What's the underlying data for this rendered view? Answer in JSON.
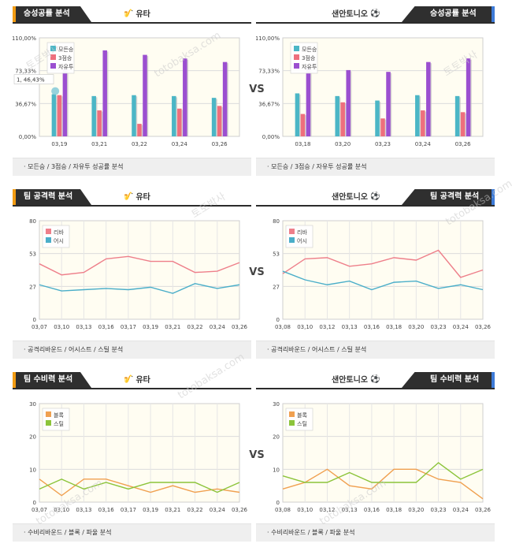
{
  "vs_label": "VS",
  "panels": [
    {
      "side": "left",
      "title": "승성공률 분석",
      "team": "유타",
      "team_icon": "jazz-logo-icon",
      "footer": "모든승 / 3점승 / 자유투 성공률 분석",
      "chart": {
        "type": "bar",
        "categories": [
          "03,19",
          "03,21",
          "03,22",
          "03,24",
          "03,26"
        ],
        "yticks": [
          "0,00%",
          "36,67%",
          "73,33%",
          "110,00%"
        ],
        "ylim": [
          0,
          110
        ],
        "series": [
          {
            "name": "모든승",
            "color": "#4bb6c6",
            "values": [
              47,
              45,
              46,
              45,
              43
            ]
          },
          {
            "name": "3점승",
            "color": "#ee6f7d",
            "values": [
              46,
              29,
              14,
              31,
              34
            ]
          },
          {
            "name": "자유투",
            "color": "#9b4fd0",
            "values": [
              75,
              96,
              91,
              87,
              83
            ]
          }
        ],
        "tooltip": "1, 46,43%"
      }
    },
    {
      "side": "right",
      "title": "승성공률 분석",
      "team": "샌안토니오",
      "team_icon": "spurs-logo-icon",
      "footer": "모든승 / 3점승 / 자유투 성공률 분석",
      "chart": {
        "type": "bar",
        "categories": [
          "03,18",
          "03,20",
          "03,23",
          "03,24",
          "03,26"
        ],
        "yticks": [
          "0,00%",
          "36,67%",
          "73,33%",
          "110,00%"
        ],
        "ylim": [
          0,
          110
        ],
        "series": [
          {
            "name": "모든승",
            "color": "#4bb6c6",
            "values": [
              48,
              45,
              40,
              46,
              45
            ]
          },
          {
            "name": "3점승",
            "color": "#ee6f7d",
            "values": [
              25,
              38,
              20,
              29,
              27
            ]
          },
          {
            "name": "자유투",
            "color": "#9b4fd0",
            "values": [
              77,
              74,
              72,
              83,
              87
            ]
          }
        ]
      }
    },
    {
      "side": "left",
      "title": "팀 공격력 분석",
      "team": "유타",
      "team_icon": "jazz-logo-icon",
      "footer": "공격리바운드 / 어시스트 / 스틸 분석",
      "chart": {
        "type": "line",
        "categories": [
          "03,07",
          "03,10",
          "03,13",
          "03,16",
          "03,17",
          "03,19",
          "03,21",
          "03,22",
          "03,24",
          "03,26"
        ],
        "yticks": [
          "0",
          "27",
          "53",
          "80"
        ],
        "ylim": [
          0,
          80
        ],
        "series": [
          {
            "name": "리바",
            "color": "#ee7f8a",
            "values": [
              45,
              36,
              38,
              49,
              51,
              47,
              47,
              38,
              39,
              46
            ]
          },
          {
            "name": "어시",
            "color": "#4aaec9",
            "values": [
              28,
              23,
              24,
              25,
              24,
              26,
              21,
              29,
              25,
              28
            ]
          }
        ]
      }
    },
    {
      "side": "right",
      "title": "팀 공격력 분석",
      "team": "샌안토니오",
      "team_icon": "spurs-logo-icon",
      "footer": "공격리바운드 / 어시스트 / 스틸 분석",
      "chart": {
        "type": "line",
        "categories": [
          "03,08",
          "03,10",
          "03,12",
          "03,13",
          "03,16",
          "03,18",
          "03,20",
          "03,23",
          "03,24",
          "03,26"
        ],
        "yticks": [
          "0",
          "27",
          "53",
          "80"
        ],
        "ylim": [
          0,
          80
        ],
        "series": [
          {
            "name": "리바",
            "color": "#ee7f8a",
            "values": [
              37,
              49,
              50,
              43,
              45,
              50,
              48,
              56,
              34,
              40
            ]
          },
          {
            "name": "어시",
            "color": "#4aaec9",
            "values": [
              39,
              32,
              28,
              31,
              24,
              30,
              31,
              25,
              28,
              24
            ]
          }
        ]
      }
    },
    {
      "side": "left",
      "title": "팀 수비력 분석",
      "team": "유타",
      "team_icon": "jazz-logo-icon",
      "footer": "수비리바운드 / 블록 / 파울 분석",
      "chart": {
        "type": "line",
        "categories": [
          "03,07",
          "03,10",
          "03,13",
          "03,16",
          "03,17",
          "03,19",
          "03,21",
          "03,22",
          "03,24",
          "03,26"
        ],
        "yticks": [
          "0",
          "10",
          "20",
          "30"
        ],
        "ylim": [
          0,
          30
        ],
        "series": [
          {
            "name": "블록",
            "color": "#f0a050",
            "values": [
              7,
              2,
              7,
              7,
              5,
              3,
              5,
              3,
              4,
              3
            ]
          },
          {
            "name": "스틸",
            "color": "#8cc43a",
            "values": [
              4,
              7,
              4,
              6,
              4,
              6,
              6,
              6,
              3,
              6
            ]
          }
        ]
      }
    },
    {
      "side": "right",
      "title": "팀 수비력 분석",
      "team": "샌안토니오",
      "team_icon": "spurs-logo-icon",
      "footer": "수비리바운드 / 블록 / 파울 분석",
      "chart": {
        "type": "line",
        "categories": [
          "03,08",
          "03,10",
          "03,12",
          "03,13",
          "03,16",
          "03,18",
          "03,20",
          "03,23",
          "03,24",
          "03,26"
        ],
        "yticks": [
          "0",
          "10",
          "20",
          "30"
        ],
        "ylim": [
          0,
          30
        ],
        "series": [
          {
            "name": "블록",
            "color": "#f0a050",
            "values": [
              4,
              6,
              10,
              5,
              4,
              10,
              10,
              7,
              6,
              1
            ]
          },
          {
            "name": "스틸",
            "color": "#8cc43a",
            "values": [
              8,
              6,
              6,
              9,
              6,
              6,
              6,
              12,
              7,
              10
            ]
          }
        ]
      }
    }
  ],
  "watermarks": [
    "토토박사",
    "totobaksa.com"
  ]
}
